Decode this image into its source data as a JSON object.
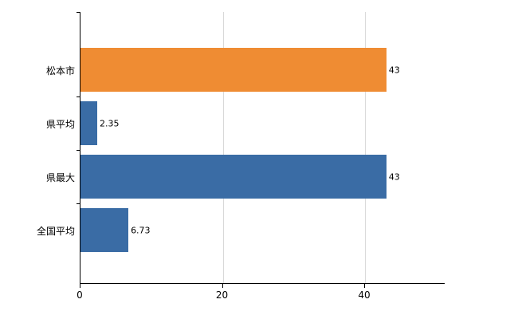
{
  "chart_data": {
    "type": "bar",
    "orientation": "horizontal",
    "title": "",
    "xlabel": "",
    "ylabel": "",
    "categories": [
      "松本市",
      "県平均",
      "県最大",
      "全国平均"
    ],
    "values": [
      43,
      2.35,
      43,
      6.73
    ],
    "value_labels": [
      "43",
      "2.35",
      "43",
      "6.73"
    ],
    "bar_colors": [
      "#ef8c33",
      "#3a6ca5",
      "#3a6ca5",
      "#3a6ca5"
    ],
    "xlim": [
      0,
      51.2
    ],
    "xticks": [
      0,
      20,
      40
    ],
    "xtick_labels": [
      "0",
      "20",
      "40"
    ],
    "grid": "vertical-light",
    "gridline_color": "#d9d9d9",
    "axis_color": "#000000",
    "legend": "none",
    "background": "#ffffff"
  }
}
